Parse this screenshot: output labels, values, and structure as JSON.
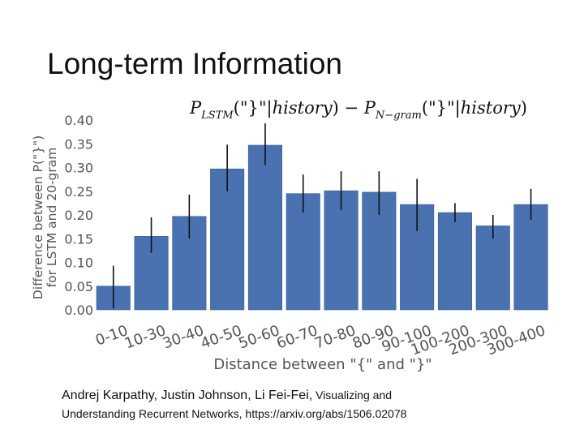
{
  "slide": {
    "title": "Long-term Information"
  },
  "chart_data": {
    "type": "bar",
    "title": "P_LSTM(\"}\"|history) − P_N-gram(\"}\"|history)",
    "title_parts": {
      "p1": "P",
      "sub1": "LSTM",
      "mid1": "(\"}\"|",
      "hist1": "history",
      "mid2": ") − ",
      "p2": "P",
      "sub2": "N−gram",
      "mid3": "(\"}\"|",
      "hist2": "history",
      "end": ")"
    },
    "xlabel": "Distance between \"{\" and \"}\"",
    "ylabel_line1": "Difference between P(\"}\")",
    "ylabel_line2": "for LSTM and 20-gram",
    "ylim": [
      0,
      0.4
    ],
    "yticks": [
      "0.00",
      "0.05",
      "0.10",
      "0.15",
      "0.20",
      "0.25",
      "0.30",
      "0.35",
      "0.40"
    ],
    "categories": [
      "0-10",
      "10-30",
      "30-40",
      "40-50",
      "50-60",
      "60-70",
      "70-80",
      "80-90",
      "90-100",
      "100-200",
      "200-300",
      "300-400"
    ],
    "values": [
      0.05,
      0.155,
      0.197,
      0.297,
      0.347,
      0.245,
      0.251,
      0.248,
      0.222,
      0.205,
      0.177,
      0.222
    ],
    "error_low": [
      0.003,
      0.12,
      0.15,
      0.25,
      0.305,
      0.205,
      0.21,
      0.2,
      0.166,
      0.185,
      0.15,
      0.19
    ],
    "error_high": [
      0.093,
      0.195,
      0.243,
      0.348,
      0.393,
      0.285,
      0.292,
      0.292,
      0.276,
      0.225,
      0.2,
      0.255
    ],
    "bar_color": "#4a72b0",
    "grid": false
  },
  "citation": {
    "authors": "Andrej Karpathy, Justin Johnson, Li Fei-Fei,",
    "rest": " Visualizing and",
    "line2": "Understanding Recurrent Networks, https://arxiv.org/abs/1506.02078"
  }
}
